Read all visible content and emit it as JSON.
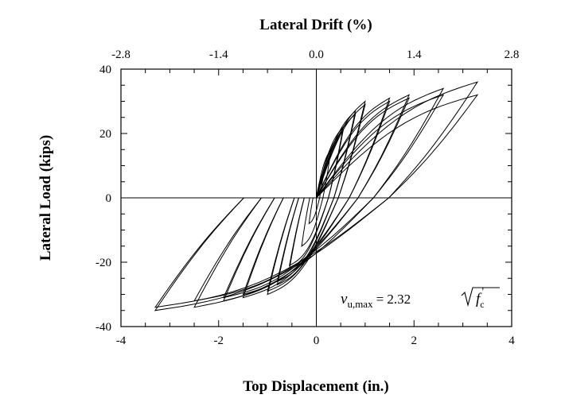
{
  "chart_data": {
    "type": "line",
    "title": "",
    "xlabel": "Top Displacement (in.)",
    "ylabel": "Lateral Load (kips)",
    "x2label": "Lateral Drift (%)",
    "xlim": [
      -4,
      4
    ],
    "ylim": [
      -40,
      40
    ],
    "x2lim": [
      -2.8,
      2.8
    ],
    "x_ticks": [
      "-4",
      "-2",
      "0",
      "2",
      "4"
    ],
    "y_ticks": [
      "-40",
      "-20",
      "0",
      "20",
      "40"
    ],
    "x2_ticks": [
      "-2.8",
      "-1.4",
      "0.0",
      "1.4",
      "2.8"
    ],
    "grid": false,
    "zero_lines": true,
    "line_color": "#000000",
    "annotation": {
      "symbol": "v",
      "subscript": "u,max",
      "equals": "= 2.32",
      "radicand": "f",
      "radicand_sub": "c",
      "prime": "'"
    },
    "loops": [
      {
        "xmax": 0.15,
        "ymax": 8,
        "xmin": -0.15,
        "ymin": -8
      },
      {
        "xmax": 0.3,
        "ymax": 15,
        "xmin": -0.3,
        "ymin": -15
      },
      {
        "xmax": 0.55,
        "ymax": 22,
        "xmin": -0.55,
        "ymin": -22
      },
      {
        "xmax": 0.55,
        "ymax": 21,
        "xmin": -0.55,
        "ymin": -21
      },
      {
        "xmax": 0.8,
        "ymax": 27,
        "xmin": -0.8,
        "ymin": -27
      },
      {
        "xmax": 0.8,
        "ymax": 26,
        "xmin": -0.8,
        "ymin": -26
      },
      {
        "xmax": 1.0,
        "ymax": 30,
        "xmin": -1.0,
        "ymin": -30
      },
      {
        "xmax": 1.0,
        "ymax": 29,
        "xmin": -1.0,
        "ymin": -29
      },
      {
        "xmax": 1.5,
        "ymax": 31,
        "xmin": -1.5,
        "ymin": -31
      },
      {
        "xmax": 1.5,
        "ymax": 30,
        "xmin": -1.5,
        "ymin": -30
      },
      {
        "xmax": 1.9,
        "ymax": 32,
        "xmin": -1.9,
        "ymin": -32
      },
      {
        "xmax": 1.9,
        "ymax": 31,
        "xmin": -1.9,
        "ymin": -31
      },
      {
        "xmax": 2.6,
        "ymax": 34,
        "xmin": -2.5,
        "ymin": -34
      },
      {
        "xmax": 2.6,
        "ymax": 32,
        "xmin": -2.5,
        "ymin": -32
      },
      {
        "xmax": 3.3,
        "ymax": 36,
        "xmin": -3.3,
        "ymin": -35
      },
      {
        "xmax": 3.3,
        "ymax": 32,
        "xmin": -3.3,
        "ymin": -34
      }
    ]
  }
}
